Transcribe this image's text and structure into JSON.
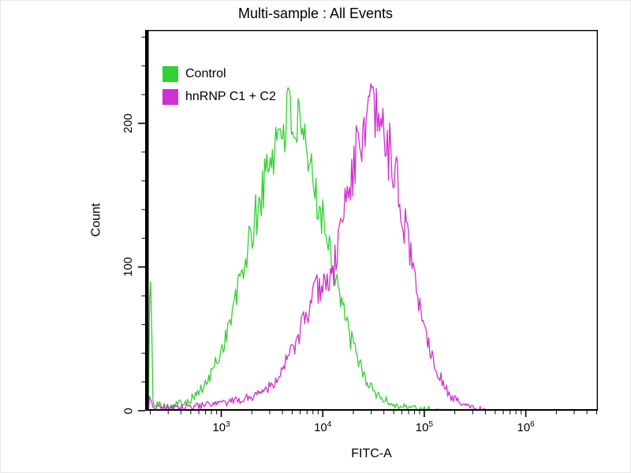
{
  "window": {
    "background_color": "#ffffff"
  },
  "chart_data": {
    "type": "line",
    "subtype": "flow-cytometry-histogram-overlay",
    "title": "Multi-sample : All Events",
    "xlabel": "FITC-A",
    "ylabel": "Count",
    "grid": false,
    "legend_position": "top-left",
    "axis_color": "#000000",
    "x_axis": {
      "scale": "log10",
      "tick_base": "10",
      "min_log10": 2.25,
      "max_log10": 6.71,
      "major_tick_exponents": [
        3,
        4,
        5,
        6
      ]
    },
    "y_axis": {
      "min": 0,
      "max": 265,
      "major_ticks": [
        0,
        100,
        200
      ],
      "minor_tick_step": 20
    },
    "points_format": "[log10(FITC-A), count]",
    "series": [
      {
        "name": "Control",
        "color": "#32d132",
        "peak": {
          "fitc_a": 4800,
          "count": 207
        },
        "points": [
          [
            2.25,
            1
          ],
          [
            2.285,
            2
          ],
          [
            2.295,
            88
          ],
          [
            2.31,
            84
          ],
          [
            2.325,
            5
          ],
          [
            2.5,
            3
          ],
          [
            2.7,
            8
          ],
          [
            2.85,
            18
          ],
          [
            3.0,
            42
          ],
          [
            3.1,
            65
          ],
          [
            3.2,
            95
          ],
          [
            3.3,
            122
          ],
          [
            3.4,
            152
          ],
          [
            3.5,
            180
          ],
          [
            3.6,
            200
          ],
          [
            3.68,
            207
          ],
          [
            3.75,
            196
          ],
          [
            3.85,
            172
          ],
          [
            3.95,
            150
          ],
          [
            4.02,
            130
          ],
          [
            4.08,
            112
          ],
          [
            4.15,
            88
          ],
          [
            4.25,
            55
          ],
          [
            4.35,
            35
          ],
          [
            4.45,
            18
          ],
          [
            4.55,
            10
          ],
          [
            4.7,
            4
          ],
          [
            4.9,
            2
          ],
          [
            5.1,
            1
          ],
          [
            5.3,
            0
          ]
        ]
      },
      {
        "name": "hnRNP C1 + C2",
        "color": "#d12fd1",
        "peak": {
          "fitc_a": 30000,
          "count": 206
        },
        "points": [
          [
            2.25,
            1
          ],
          [
            2.285,
            1
          ],
          [
            2.295,
            12
          ],
          [
            2.325,
            3
          ],
          [
            2.6,
            2
          ],
          [
            2.9,
            4
          ],
          [
            3.1,
            6
          ],
          [
            3.3,
            10
          ],
          [
            3.5,
            18
          ],
          [
            3.65,
            35
          ],
          [
            3.75,
            50
          ],
          [
            3.85,
            68
          ],
          [
            3.95,
            85
          ],
          [
            4.02,
            92
          ],
          [
            4.07,
            87
          ],
          [
            4.12,
            102
          ],
          [
            4.2,
            138
          ],
          [
            4.3,
            170
          ],
          [
            4.4,
            196
          ],
          [
            4.48,
            206
          ],
          [
            4.56,
            199
          ],
          [
            4.65,
            182
          ],
          [
            4.75,
            150
          ],
          [
            4.85,
            115
          ],
          [
            4.95,
            75
          ],
          [
            5.05,
            45
          ],
          [
            5.15,
            24
          ],
          [
            5.25,
            11
          ],
          [
            5.35,
            5
          ],
          [
            5.5,
            2
          ],
          [
            5.65,
            0
          ]
        ]
      }
    ]
  }
}
